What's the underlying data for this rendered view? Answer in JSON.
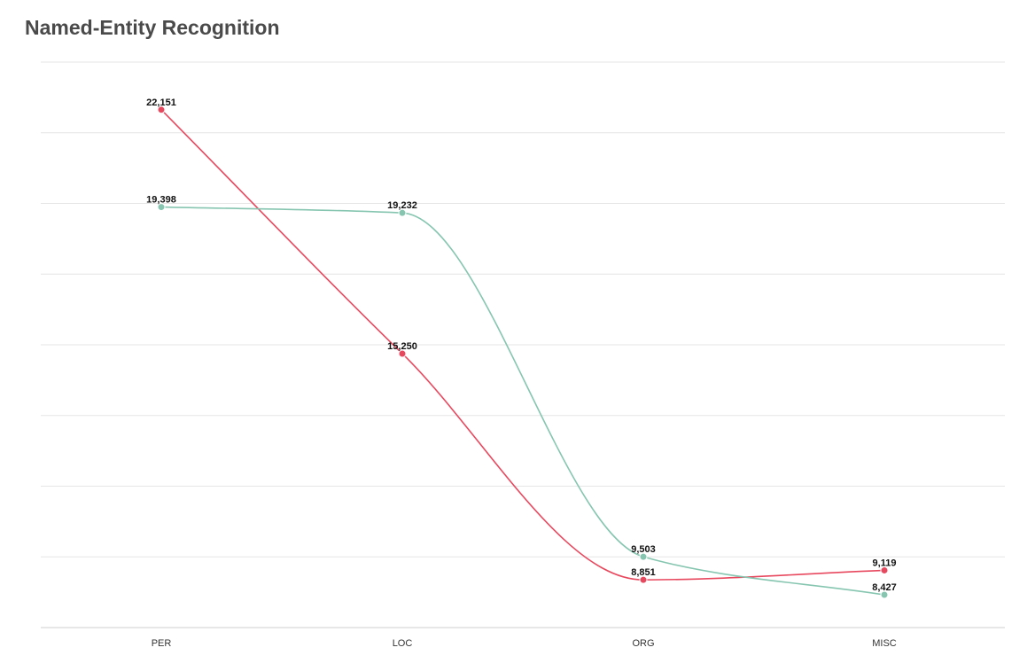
{
  "chart_data": {
    "type": "line",
    "title": "Named-Entity Recognition",
    "categories": [
      "PER",
      "LOC",
      "ORG",
      "MISC"
    ],
    "series": [
      {
        "color": "#e8485e",
        "values": [
          22151,
          15250,
          8851,
          9119
        ],
        "labels": [
          "22,151",
          "15,250",
          "8,851",
          "9,119"
        ]
      },
      {
        "color": "#86c6b0",
        "values": [
          19398,
          19232,
          9503,
          8427
        ],
        "labels": [
          "19,398",
          "19,232",
          "9,503",
          "8,427"
        ]
      }
    ],
    "ylim": [
      7500,
      23500
    ],
    "grid": true,
    "legend": "none"
  }
}
